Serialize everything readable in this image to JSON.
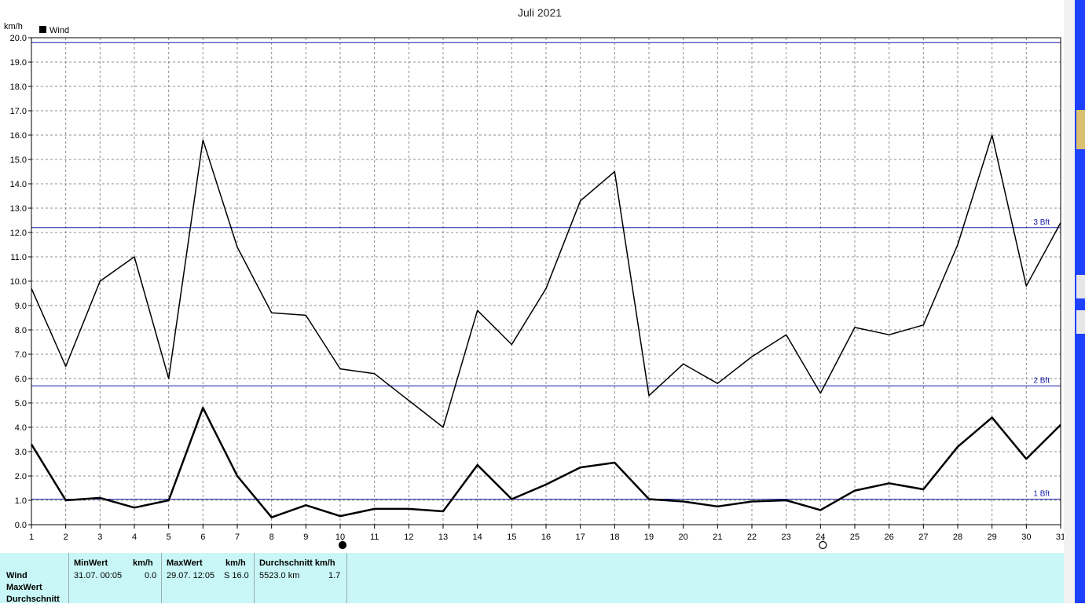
{
  "chart_data": {
    "type": "line",
    "title": "Juli 2021",
    "ylabel": "km/h",
    "xlabel": "",
    "x": [
      1,
      2,
      3,
      4,
      5,
      6,
      7,
      8,
      9,
      10,
      11,
      12,
      13,
      14,
      15,
      16,
      17,
      18,
      19,
      20,
      21,
      22,
      23,
      24,
      25,
      26,
      27,
      28,
      29,
      30,
      31
    ],
    "ylim": [
      0,
      20
    ],
    "yticks": [
      "0.0",
      "1.0",
      "2.0",
      "3.0",
      "4.0",
      "5.0",
      "6.0",
      "7.0",
      "8.0",
      "9.0",
      "10.0",
      "11.0",
      "12.0",
      "13.0",
      "14.0",
      "15.0",
      "16.0",
      "17.0",
      "18.0",
      "19.0",
      "20.0"
    ],
    "legend": "top-left",
    "legend_label": "Wind",
    "grid": true,
    "series": [
      {
        "name": "Wind",
        "color": "#000000",
        "values": [
          3.3,
          1.0,
          1.1,
          0.7,
          1.0,
          4.8,
          2.0,
          0.3,
          0.8,
          0.35,
          0.65,
          0.65,
          0.55,
          2.45,
          1.05,
          1.65,
          2.35,
          2.55,
          1.05,
          0.95,
          0.75,
          0.95,
          1.0,
          0.6,
          1.4,
          1.7,
          1.45,
          3.2,
          4.4,
          2.7,
          4.1
        ]
      },
      {
        "color": "#000000",
        "values": [
          9.7,
          6.5,
          10.0,
          11.0,
          6.0,
          15.8,
          11.4,
          8.7,
          8.6,
          6.4,
          6.2,
          5.1,
          4.0,
          8.8,
          7.4,
          9.7,
          13.3,
          14.5,
          5.3,
          6.6,
          5.8,
          6.9,
          7.8,
          5.4,
          8.1,
          7.8,
          8.2,
          11.5,
          16.0,
          9.8,
          12.4
        ]
      }
    ],
    "reference_lines": [
      {
        "label": "1 Bft",
        "value": 1.05,
        "color": "#1a1aa8"
      },
      {
        "label": "2 Bft",
        "value": 5.7,
        "color": "#1a1aa8"
      },
      {
        "label": "3 Bft",
        "value": 12.2,
        "color": "#1a1aa8"
      },
      {
        "value": 19.8,
        "color": "#1a1aa8"
      }
    ],
    "moon_markers": [
      {
        "day": 10,
        "phase": "new"
      },
      {
        "day": 24,
        "phase": "full"
      }
    ]
  },
  "stats": {
    "row_labels": [
      "Wind",
      "MaxWert",
      "Durchschnitt"
    ],
    "min": {
      "header": "MinWert",
      "unit": "km/h",
      "datetime": "31.07.  00:05",
      "value": "0.0"
    },
    "max": {
      "header": "MaxWert",
      "unit": "km/h",
      "datetime": "29.07.  12:05",
      "value": "S 16.0"
    },
    "avg": {
      "header": "Durchschnitt km/h",
      "distance": "5523.0 km",
      "value": "1.7"
    }
  }
}
